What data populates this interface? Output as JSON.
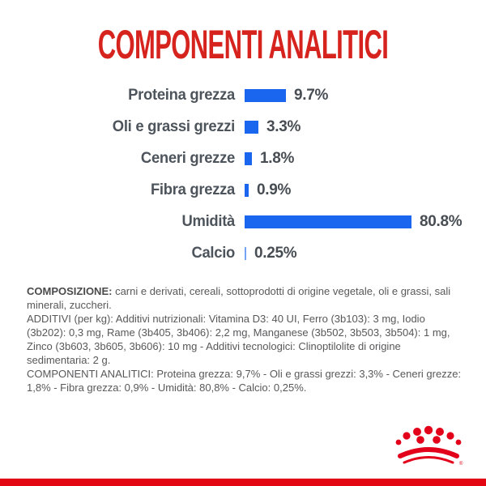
{
  "title": "COMPONENTI ANALITICI",
  "colors": {
    "title_red": "#d6231e",
    "bar_blue": "#1a66ee",
    "brand_red": "#e2001a",
    "footer_red": "#e30613",
    "body_text_gray": "#58585a",
    "chart_label_gray": "#4d545b"
  },
  "chart_data": {
    "type": "bar",
    "orientation": "horizontal",
    "grid": false,
    "legend": false,
    "axis_labels": "none",
    "categories": [
      "Proteina grezza",
      "Oli e grassi grezzi",
      "Ceneri grezze",
      "Fibra grezza",
      "Umidità",
      "Calcio"
    ],
    "values": [
      9.7,
      3.3,
      1.8,
      0.9,
      80.8,
      0.25
    ],
    "value_labels": [
      "9.7%",
      "3.3%",
      "1.8%",
      "0.9%",
      "80.8%",
      "0.25%"
    ],
    "unit": "%",
    "bar_color": "#1a66ee"
  },
  "info_text": {
    "composizione_label": "COMPOSIZIONE:",
    "composizione_body": " carni e derivati, cereali, sottoprodotti di origine vegetale, oli e grassi, sali minerali, zuccheri.",
    "additivi": "ADDITIVI (per kg): Additivi nutrizionali: Vitamina D3: 40 UI, Ferro (3b103): 3 mg, Iodio (3b202): 0,3 mg, Rame (3b405, 3b406): 2,2 mg, Manganese (3b502, 3b503, 3b504): 1 mg, Zinco (3b603, 3b605, 3b606): 10 mg - Additivi tecnologici: Clinoptilolite di origine sedimentaria: 2 g.",
    "componenti_analitici": "COMPONENTI ANALITICI: Proteina grezza: 9,7% - Oli e grassi grezzi: 3,3% - Ceneri grezze: 1,8% - Fibra grezza: 0,9% - Umidità: 80,8% - Calcio: 0,25%."
  },
  "logo": {
    "name": "royal-canin-crown",
    "registered_mark": "®"
  }
}
